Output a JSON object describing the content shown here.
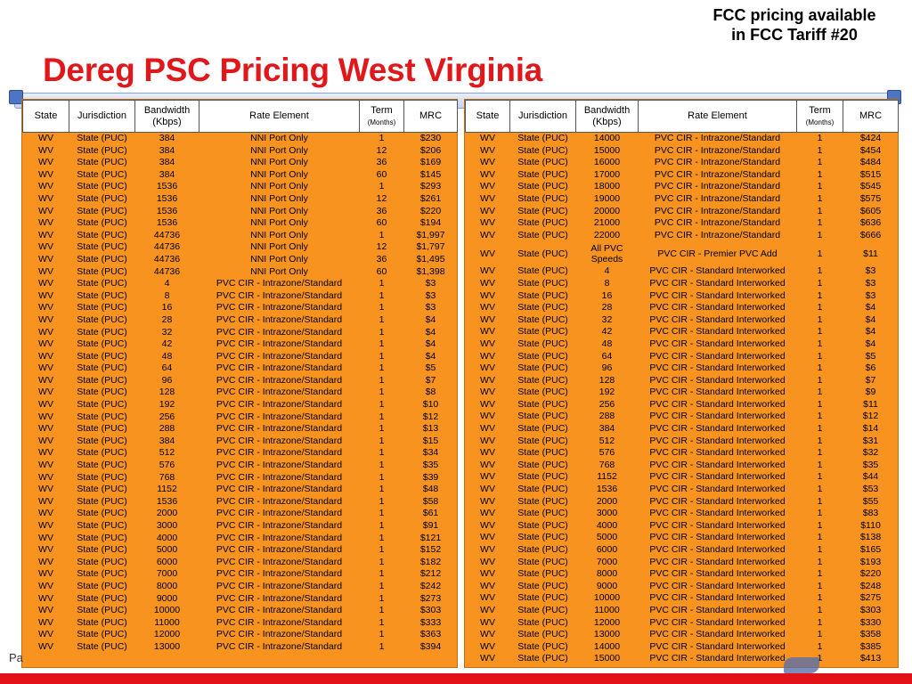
{
  "header": {
    "note_line1": "FCC pricing available",
    "note_line2": "in FCC Tariff #20",
    "title": "Dereg PSC Pricing West Virginia"
  },
  "footer": {
    "text": "Pa"
  },
  "columns": {
    "state": "State",
    "jurisdiction": "Jurisdiction",
    "bandwidth_line1": "Bandwidth",
    "bandwidth_line2": "(Kbps)",
    "rate_element": "Rate Element",
    "term_line1": "Term",
    "term_line2": "(Months)",
    "mrc": "MRC"
  },
  "left_rows": [
    [
      "WV",
      "State (PUC)",
      "384",
      "NNI Port Only",
      "1",
      "$230"
    ],
    [
      "WV",
      "State (PUC)",
      "384",
      "NNI Port Only",
      "12",
      "$206"
    ],
    [
      "WV",
      "State (PUC)",
      "384",
      "NNI Port Only",
      "36",
      "$169"
    ],
    [
      "WV",
      "State (PUC)",
      "384",
      "NNI Port Only",
      "60",
      "$145"
    ],
    [
      "WV",
      "State (PUC)",
      "1536",
      "NNI Port Only",
      "1",
      "$293"
    ],
    [
      "WV",
      "State (PUC)",
      "1536",
      "NNI Port Only",
      "12",
      "$261"
    ],
    [
      "WV",
      "State (PUC)",
      "1536",
      "NNI Port Only",
      "36",
      "$220"
    ],
    [
      "WV",
      "State (PUC)",
      "1536",
      "NNI Port Only",
      "60",
      "$194"
    ],
    [
      "WV",
      "State (PUC)",
      "44736",
      "NNI Port Only",
      "1",
      "$1,997"
    ],
    [
      "WV",
      "State (PUC)",
      "44736",
      "NNI Port Only",
      "12",
      "$1,797"
    ],
    [
      "WV",
      "State (PUC)",
      "44736",
      "NNI Port Only",
      "36",
      "$1,495"
    ],
    [
      "WV",
      "State (PUC)",
      "44736",
      "NNI Port Only",
      "60",
      "$1,398"
    ],
    [
      "WV",
      "State (PUC)",
      "4",
      "PVC CIR - Intrazone/Standard",
      "1",
      "$3"
    ],
    [
      "WV",
      "State (PUC)",
      "8",
      "PVC CIR - Intrazone/Standard",
      "1",
      "$3"
    ],
    [
      "WV",
      "State (PUC)",
      "16",
      "PVC CIR - Intrazone/Standard",
      "1",
      "$3"
    ],
    [
      "WV",
      "State (PUC)",
      "28",
      "PVC CIR - Intrazone/Standard",
      "1",
      "$4"
    ],
    [
      "WV",
      "State (PUC)",
      "32",
      "PVC CIR - Intrazone/Standard",
      "1",
      "$4"
    ],
    [
      "WV",
      "State (PUC)",
      "42",
      "PVC CIR - Intrazone/Standard",
      "1",
      "$4"
    ],
    [
      "WV",
      "State (PUC)",
      "48",
      "PVC CIR - Intrazone/Standard",
      "1",
      "$4"
    ],
    [
      "WV",
      "State (PUC)",
      "64",
      "PVC CIR - Intrazone/Standard",
      "1",
      "$5"
    ],
    [
      "WV",
      "State (PUC)",
      "96",
      "PVC CIR - Intrazone/Standard",
      "1",
      "$7"
    ],
    [
      "WV",
      "State (PUC)",
      "128",
      "PVC CIR - Intrazone/Standard",
      "1",
      "$8"
    ],
    [
      "WV",
      "State (PUC)",
      "192",
      "PVC CIR - Intrazone/Standard",
      "1",
      "$10"
    ],
    [
      "WV",
      "State (PUC)",
      "256",
      "PVC CIR - Intrazone/Standard",
      "1",
      "$12"
    ],
    [
      "WV",
      "State (PUC)",
      "288",
      "PVC CIR - Intrazone/Standard",
      "1",
      "$13"
    ],
    [
      "WV",
      "State (PUC)",
      "384",
      "PVC CIR - Intrazone/Standard",
      "1",
      "$15"
    ],
    [
      "WV",
      "State (PUC)",
      "512",
      "PVC CIR - Intrazone/Standard",
      "1",
      "$34"
    ],
    [
      "WV",
      "State (PUC)",
      "576",
      "PVC CIR - Intrazone/Standard",
      "1",
      "$35"
    ],
    [
      "WV",
      "State (PUC)",
      "768",
      "PVC CIR - Intrazone/Standard",
      "1",
      "$39"
    ],
    [
      "WV",
      "State (PUC)",
      "1152",
      "PVC CIR - Intrazone/Standard",
      "1",
      "$48"
    ],
    [
      "WV",
      "State (PUC)",
      "1536",
      "PVC CIR - Intrazone/Standard",
      "1",
      "$58"
    ],
    [
      "WV",
      "State (PUC)",
      "2000",
      "PVC CIR - Intrazone/Standard",
      "1",
      "$61"
    ],
    [
      "WV",
      "State (PUC)",
      "3000",
      "PVC CIR - Intrazone/Standard",
      "1",
      "$91"
    ],
    [
      "WV",
      "State (PUC)",
      "4000",
      "PVC CIR - Intrazone/Standard",
      "1",
      "$121"
    ],
    [
      "WV",
      "State (PUC)",
      "5000",
      "PVC CIR - Intrazone/Standard",
      "1",
      "$152"
    ],
    [
      "WV",
      "State (PUC)",
      "6000",
      "PVC CIR - Intrazone/Standard",
      "1",
      "$182"
    ],
    [
      "WV",
      "State (PUC)",
      "7000",
      "PVC CIR - Intrazone/Standard",
      "1",
      "$212"
    ],
    [
      "WV",
      "State (PUC)",
      "8000",
      "PVC CIR - Intrazone/Standard",
      "1",
      "$242"
    ],
    [
      "WV",
      "State (PUC)",
      "9000",
      "PVC CIR - Intrazone/Standard",
      "1",
      "$273"
    ],
    [
      "WV",
      "State (PUC)",
      "10000",
      "PVC CIR - Intrazone/Standard",
      "1",
      "$303"
    ],
    [
      "WV",
      "State (PUC)",
      "11000",
      "PVC CIR - Intrazone/Standard",
      "1",
      "$333"
    ],
    [
      "WV",
      "State (PUC)",
      "12000",
      "PVC CIR - Intrazone/Standard",
      "1",
      "$363"
    ],
    [
      "WV",
      "State (PUC)",
      "13000",
      "PVC CIR - Intrazone/Standard",
      "1",
      "$394"
    ]
  ],
  "right_rows": [
    [
      "WV",
      "State (PUC)",
      "14000",
      "PVC CIR - Intrazone/Standard",
      "1",
      "$424"
    ],
    [
      "WV",
      "State (PUC)",
      "15000",
      "PVC CIR - Intrazone/Standard",
      "1",
      "$454"
    ],
    [
      "WV",
      "State (PUC)",
      "16000",
      "PVC CIR - Intrazone/Standard",
      "1",
      "$484"
    ],
    [
      "WV",
      "State (PUC)",
      "17000",
      "PVC CIR - Intrazone/Standard",
      "1",
      "$515"
    ],
    [
      "WV",
      "State (PUC)",
      "18000",
      "PVC CIR - Intrazone/Standard",
      "1",
      "$545"
    ],
    [
      "WV",
      "State (PUC)",
      "19000",
      "PVC CIR - Intrazone/Standard",
      "1",
      "$575"
    ],
    [
      "WV",
      "State (PUC)",
      "20000",
      "PVC CIR - Intrazone/Standard",
      "1",
      "$605"
    ],
    [
      "WV",
      "State (PUC)",
      "21000",
      "PVC CIR - Intrazone/Standard",
      "1",
      "$636"
    ],
    [
      "WV",
      "State (PUC)",
      "22000",
      "PVC CIR - Intrazone/Standard",
      "1",
      "$666"
    ],
    [
      "WV",
      "State (PUC)",
      "All PVC Speeds",
      "PVC CIR - Premier PVC Add",
      "1",
      "$11"
    ],
    [
      "WV",
      "State (PUC)",
      "4",
      "PVC CIR - Standard Interworked",
      "1",
      "$3"
    ],
    [
      "WV",
      "State (PUC)",
      "8",
      "PVC CIR - Standard Interworked",
      "1",
      "$3"
    ],
    [
      "WV",
      "State (PUC)",
      "16",
      "PVC CIR - Standard Interworked",
      "1",
      "$3"
    ],
    [
      "WV",
      "State (PUC)",
      "28",
      "PVC CIR - Standard Interworked",
      "1",
      "$4"
    ],
    [
      "WV",
      "State (PUC)",
      "32",
      "PVC CIR - Standard Interworked",
      "1",
      "$4"
    ],
    [
      "WV",
      "State (PUC)",
      "42",
      "PVC CIR - Standard Interworked",
      "1",
      "$4"
    ],
    [
      "WV",
      "State (PUC)",
      "48",
      "PVC CIR - Standard Interworked",
      "1",
      "$4"
    ],
    [
      "WV",
      "State (PUC)",
      "64",
      "PVC CIR - Standard Interworked",
      "1",
      "$5"
    ],
    [
      "WV",
      "State (PUC)",
      "96",
      "PVC CIR - Standard Interworked",
      "1",
      "$6"
    ],
    [
      "WV",
      "State (PUC)",
      "128",
      "PVC CIR - Standard Interworked",
      "1",
      "$7"
    ],
    [
      "WV",
      "State (PUC)",
      "192",
      "PVC CIR - Standard Interworked",
      "1",
      "$9"
    ],
    [
      "WV",
      "State (PUC)",
      "256",
      "PVC CIR - Standard Interworked",
      "1",
      "$11"
    ],
    [
      "WV",
      "State (PUC)",
      "288",
      "PVC CIR - Standard Interworked",
      "1",
      "$12"
    ],
    [
      "WV",
      "State (PUC)",
      "384",
      "PVC CIR - Standard Interworked",
      "1",
      "$14"
    ],
    [
      "WV",
      "State (PUC)",
      "512",
      "PVC CIR - Standard Interworked",
      "1",
      "$31"
    ],
    [
      "WV",
      "State (PUC)",
      "576",
      "PVC CIR - Standard Interworked",
      "1",
      "$32"
    ],
    [
      "WV",
      "State (PUC)",
      "768",
      "PVC CIR - Standard Interworked",
      "1",
      "$35"
    ],
    [
      "WV",
      "State (PUC)",
      "1152",
      "PVC CIR - Standard Interworked",
      "1",
      "$44"
    ],
    [
      "WV",
      "State (PUC)",
      "1536",
      "PVC CIR - Standard Interworked",
      "1",
      "$53"
    ],
    [
      "WV",
      "State (PUC)",
      "2000",
      "PVC CIR - Standard Interworked",
      "1",
      "$55"
    ],
    [
      "WV",
      "State (PUC)",
      "3000",
      "PVC CIR - Standard Interworked",
      "1",
      "$83"
    ],
    [
      "WV",
      "State (PUC)",
      "4000",
      "PVC CIR - Standard Interworked",
      "1",
      "$110"
    ],
    [
      "WV",
      "State (PUC)",
      "5000",
      "PVC CIR - Standard Interworked",
      "1",
      "$138"
    ],
    [
      "WV",
      "State (PUC)",
      "6000",
      "PVC CIR - Standard Interworked",
      "1",
      "$165"
    ],
    [
      "WV",
      "State (PUC)",
      "7000",
      "PVC CIR - Standard Interworked",
      "1",
      "$193"
    ],
    [
      "WV",
      "State (PUC)",
      "8000",
      "PVC CIR - Standard Interworked",
      "1",
      "$220"
    ],
    [
      "WV",
      "State (PUC)",
      "9000",
      "PVC CIR - Standard Interworked",
      "1",
      "$248"
    ],
    [
      "WV",
      "State (PUC)",
      "10000",
      "PVC CIR - Standard Interworked",
      "1",
      "$275"
    ],
    [
      "WV",
      "State (PUC)",
      "11000",
      "PVC CIR - Standard Interworked",
      "1",
      "$303"
    ],
    [
      "WV",
      "State (PUC)",
      "12000",
      "PVC CIR - Standard Interworked",
      "1",
      "$330"
    ],
    [
      "WV",
      "State (PUC)",
      "13000",
      "PVC CIR - Standard Interworked",
      "1",
      "$358"
    ],
    [
      "WV",
      "State (PUC)",
      "14000",
      "PVC CIR - Standard Interworked",
      "1",
      "$385"
    ],
    [
      "WV",
      "State (PUC)",
      "15000",
      "PVC CIR - Standard Interworked",
      "1",
      "$413"
    ]
  ]
}
